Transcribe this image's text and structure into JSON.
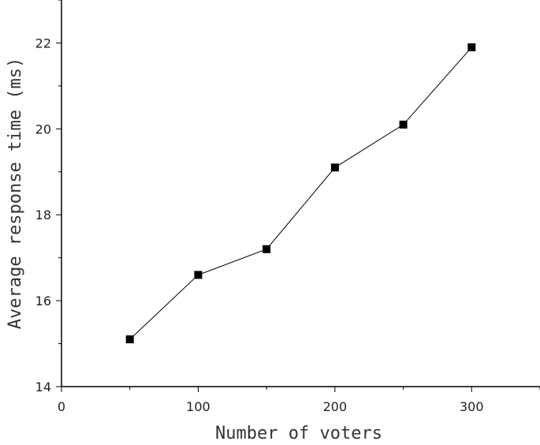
{
  "chart_data": {
    "type": "line",
    "title": "",
    "xlabel": "Number of voters",
    "ylabel": "Average response time (ms)",
    "x": [
      50,
      100,
      150,
      200,
      250,
      300
    ],
    "series": [
      {
        "values": [
          15.1,
          16.6,
          17.2,
          19.1,
          20.1,
          21.9
        ],
        "marker": "square",
        "color": "#000000",
        "line_color": "#000000"
      }
    ],
    "xlim": [
      0,
      350
    ],
    "ylim": [
      14,
      23
    ],
    "xticks": [
      0,
      100,
      200,
      300
    ],
    "yticks": [
      14,
      16,
      18,
      20,
      22
    ],
    "grid": false,
    "legend": "none"
  }
}
